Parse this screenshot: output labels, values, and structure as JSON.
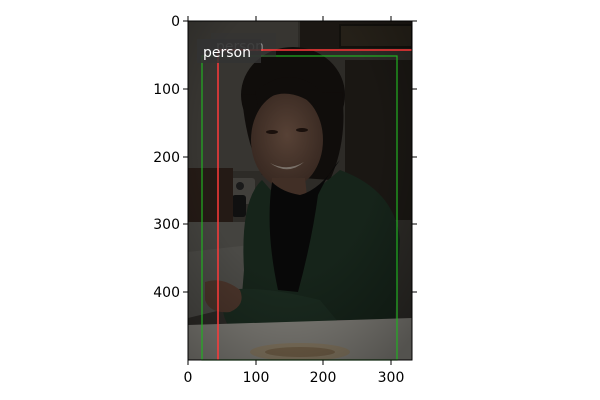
{
  "figure": {
    "x_ticks": [
      "0",
      "100",
      "200",
      "300"
    ],
    "y_ticks": [
      "0",
      "100",
      "200",
      "300",
      "400"
    ],
    "colors": {
      "ground_truth_box": "#22b022",
      "prediction_box": "#ff3a3a",
      "label_bg": "#333333",
      "label_text": "#ffffff"
    }
  },
  "detections": [
    {
      "label": "person",
      "source": "ground-truth"
    },
    {
      "label": "person",
      "source": "prediction"
    }
  ]
}
